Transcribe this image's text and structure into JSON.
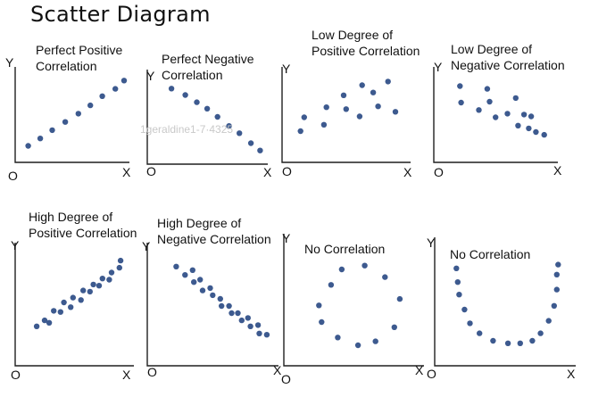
{
  "title": "Scatter Diagram",
  "watermark": "1geraldine1-7·4325",
  "colors": {
    "point": "#3d5a8f",
    "axis": "#1f1f1f",
    "watermark": "#c9c9c9"
  },
  "chart_data": [
    {
      "type": "scatter",
      "title": [
        "Perfect Positive",
        "Correlation"
      ],
      "axis_labels": {
        "y": "Y",
        "x": "X",
        "origin": "O"
      },
      "xlim": [
        0,
        10
      ],
      "ylim": [
        0,
        10
      ],
      "points": [
        [
          1.2,
          1.8
        ],
        [
          2.3,
          2.6
        ],
        [
          3.4,
          3.5
        ],
        [
          4.6,
          4.4
        ],
        [
          5.8,
          5.3
        ],
        [
          6.9,
          6.2
        ],
        [
          8.0,
          7.2
        ],
        [
          9.2,
          8.0
        ],
        [
          10.0,
          8.9
        ]
      ]
    },
    {
      "type": "scatter",
      "title": [
        "Perfect Negative",
        "Correlation"
      ],
      "axis_labels": {
        "y": "Y",
        "x": "X",
        "origin": "O"
      },
      "xlim": [
        0,
        10
      ],
      "ylim": [
        0,
        10
      ],
      "points": [
        [
          2.1,
          8.3
        ],
        [
          3.3,
          7.6
        ],
        [
          4.3,
          6.8
        ],
        [
          5.2,
          6.1
        ],
        [
          6.1,
          5.2
        ],
        [
          7.1,
          4.2
        ],
        [
          8.0,
          3.4
        ],
        [
          9.0,
          2.3
        ],
        [
          9.8,
          1.5
        ]
      ]
    },
    {
      "type": "scatter",
      "title": [
        "Low Degree of",
        "Positive Correlation"
      ],
      "axis_labels": {
        "y": "Y",
        "x": "X",
        "origin": "O"
      },
      "xlim": [
        0,
        10
      ],
      "ylim": [
        0,
        10
      ],
      "points": [
        [
          1.5,
          3.4
        ],
        [
          1.8,
          4.9
        ],
        [
          3.4,
          4.1
        ],
        [
          3.6,
          6.0
        ],
        [
          5.2,
          5.8
        ],
        [
          5.0,
          7.3
        ],
        [
          6.3,
          5.0
        ],
        [
          6.5,
          8.4
        ],
        [
          7.8,
          6.1
        ],
        [
          7.4,
          7.6
        ],
        [
          8.6,
          8.8
        ],
        [
          9.2,
          5.5
        ]
      ]
    },
    {
      "type": "scatter",
      "title": [
        "Low Degree of",
        "Negative Correlation"
      ],
      "axis_labels": {
        "y": "Y",
        "x": "X",
        "origin": "O"
      },
      "xlim": [
        0,
        10
      ],
      "ylim": [
        0,
        10
      ],
      "points": [
        [
          2.2,
          8.3
        ],
        [
          2.3,
          6.5
        ],
        [
          3.8,
          5.7
        ],
        [
          4.5,
          8.0
        ],
        [
          4.7,
          6.6
        ],
        [
          5.2,
          4.9
        ],
        [
          6.2,
          5.3
        ],
        [
          6.9,
          7.0
        ],
        [
          7.1,
          4.0
        ],
        [
          7.6,
          5.2
        ],
        [
          8.0,
          3.7
        ],
        [
          8.6,
          3.3
        ],
        [
          8.2,
          5.0
        ],
        [
          9.3,
          3.0
        ]
      ]
    },
    {
      "type": "scatter",
      "title": [
        "High Degree of",
        "Positive Correlation"
      ],
      "axis_labels": {
        "y": "Y",
        "x": "X",
        "origin": "O"
      },
      "xlim": [
        0,
        10
      ],
      "ylim": [
        0,
        10
      ],
      "points": [
        [
          1.9,
          3.3
        ],
        [
          2.6,
          3.8
        ],
        [
          3.0,
          3.6
        ],
        [
          3.4,
          4.6
        ],
        [
          4.0,
          4.5
        ],
        [
          4.3,
          5.3
        ],
        [
          4.9,
          4.9
        ],
        [
          5.1,
          5.7
        ],
        [
          5.8,
          5.5
        ],
        [
          6.0,
          6.3
        ],
        [
          6.6,
          6.2
        ],
        [
          6.9,
          6.8
        ],
        [
          7.4,
          6.7
        ],
        [
          7.7,
          7.3
        ],
        [
          8.3,
          7.2
        ],
        [
          8.5,
          7.8
        ],
        [
          9.2,
          8.2
        ],
        [
          9.3,
          8.8
        ]
      ]
    },
    {
      "type": "scatter",
      "title": [
        "High Degree of",
        "Negative Correlation"
      ],
      "axis_labels": {
        "y": "Y",
        "x": "X",
        "origin": "O"
      },
      "xlim": [
        0,
        10
      ],
      "ylim": [
        0,
        10
      ],
      "points": [
        [
          2.3,
          8.3
        ],
        [
          3.0,
          7.6
        ],
        [
          3.6,
          8.0
        ],
        [
          3.7,
          7.0
        ],
        [
          4.2,
          7.2
        ],
        [
          4.4,
          6.3
        ],
        [
          5.0,
          6.5
        ],
        [
          5.2,
          5.9
        ],
        [
          5.8,
          5.6
        ],
        [
          5.9,
          5.0
        ],
        [
          6.5,
          5.0
        ],
        [
          6.7,
          4.4
        ],
        [
          7.2,
          4.4
        ],
        [
          7.5,
          3.8
        ],
        [
          8.0,
          4.0
        ],
        [
          8.2,
          3.3
        ],
        [
          8.8,
          3.4
        ],
        [
          8.9,
          2.7
        ],
        [
          9.5,
          2.6
        ]
      ]
    },
    {
      "type": "scatter",
      "title": [
        "No Correlation"
      ],
      "axis_labels": {
        "y": "Y",
        "x": "X",
        "origin": "O"
      },
      "xlim": [
        0,
        10
      ],
      "ylim": [
        0,
        10
      ],
      "points": [
        [
          2.6,
          4.7
        ],
        [
          2.8,
          3.4
        ],
        [
          3.5,
          6.3
        ],
        [
          4.0,
          2.2
        ],
        [
          4.3,
          7.5
        ],
        [
          5.5,
          1.6
        ],
        [
          6.0,
          7.8
        ],
        [
          6.8,
          1.9
        ],
        [
          7.5,
          6.9
        ],
        [
          8.2,
          3.0
        ],
        [
          8.6,
          5.2
        ]
      ]
    },
    {
      "type": "scatter",
      "title": [
        "No Correlation"
      ],
      "axis_labels": {
        "y": "Y",
        "x": "X",
        "origin": "O"
      },
      "xlim": [
        0,
        10
      ],
      "ylim": [
        0,
        10
      ],
      "points": [
        [
          1.6,
          7.8
        ],
        [
          1.7,
          6.7
        ],
        [
          1.8,
          5.7
        ],
        [
          2.2,
          4.5
        ],
        [
          2.6,
          3.4
        ],
        [
          3.3,
          2.6
        ],
        [
          4.3,
          2.0
        ],
        [
          5.4,
          1.8
        ],
        [
          6.3,
          1.8
        ],
        [
          7.2,
          2.0
        ],
        [
          7.8,
          2.6
        ],
        [
          8.4,
          3.6
        ],
        [
          8.8,
          4.8
        ],
        [
          9.0,
          6.1
        ],
        [
          9.0,
          7.3
        ],
        [
          9.1,
          8.1
        ]
      ]
    }
  ]
}
